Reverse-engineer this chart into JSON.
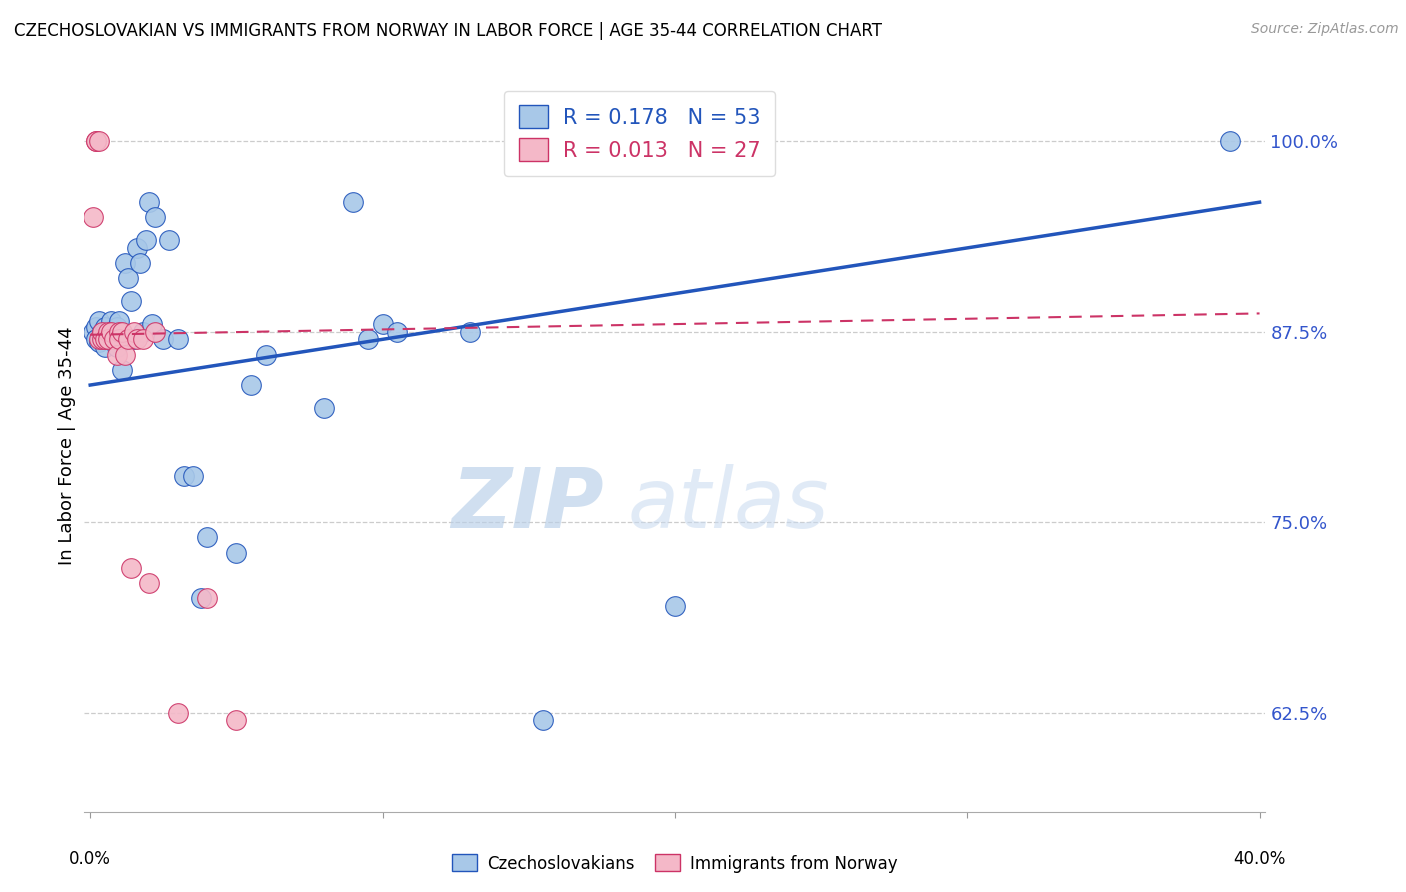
{
  "title": "CZECHOSLOVAKIAN VS IMMIGRANTS FROM NORWAY IN LABOR FORCE | AGE 35-44 CORRELATION CHART",
  "source": "Source: ZipAtlas.com",
  "ylabel": "In Labor Force | Age 35-44",
  "ytick_values": [
    1.0,
    0.875,
    0.75,
    0.625
  ],
  "ytick_labels": [
    "100.0%",
    "87.5%",
    "75.0%",
    "62.5%"
  ],
  "ymin": 0.56,
  "ymax": 1.04,
  "xmin": -0.002,
  "xmax": 0.402,
  "blue_R": 0.178,
  "blue_N": 53,
  "pink_R": 0.013,
  "pink_N": 27,
  "legend_label_blue": "Czechoslovakians",
  "legend_label_pink": "Immigrants from Norway",
  "blue_color": "#a8c8e8",
  "pink_color": "#f4b8c8",
  "trend_blue_color": "#2255bb",
  "trend_pink_color": "#cc3366",
  "watermark_zip": "ZIP",
  "watermark_atlas": "atlas",
  "blue_scatter_x": [
    0.001,
    0.002,
    0.002,
    0.003,
    0.003,
    0.004,
    0.004,
    0.005,
    0.005,
    0.005,
    0.006,
    0.006,
    0.007,
    0.007,
    0.008,
    0.008,
    0.009,
    0.009,
    0.009,
    0.01,
    0.01,
    0.01,
    0.011,
    0.012,
    0.013,
    0.014,
    0.015,
    0.016,
    0.017,
    0.018,
    0.019,
    0.02,
    0.021,
    0.022,
    0.025,
    0.027,
    0.03,
    0.032,
    0.035,
    0.038,
    0.04,
    0.05,
    0.055,
    0.06,
    0.08,
    0.09,
    0.095,
    0.1,
    0.105,
    0.13,
    0.155,
    0.2,
    0.39
  ],
  "blue_scatter_y": [
    0.875,
    0.878,
    0.87,
    0.882,
    0.868,
    0.875,
    0.87,
    0.878,
    0.865,
    0.875,
    0.87,
    0.875,
    0.87,
    0.882,
    0.87,
    0.875,
    0.87,
    0.878,
    0.865,
    0.87,
    0.875,
    0.882,
    0.85,
    0.92,
    0.91,
    0.895,
    0.87,
    0.93,
    0.92,
    0.875,
    0.935,
    0.96,
    0.88,
    0.95,
    0.87,
    0.935,
    0.87,
    0.78,
    0.78,
    0.7,
    0.74,
    0.73,
    0.84,
    0.86,
    0.825,
    0.96,
    0.87,
    0.88,
    0.875,
    0.875,
    0.62,
    0.695,
    1.0
  ],
  "pink_scatter_x": [
    0.001,
    0.002,
    0.002,
    0.003,
    0.003,
    0.004,
    0.004,
    0.005,
    0.006,
    0.006,
    0.007,
    0.008,
    0.009,
    0.01,
    0.01,
    0.011,
    0.012,
    0.013,
    0.014,
    0.015,
    0.016,
    0.018,
    0.02,
    0.022,
    0.03,
    0.04,
    0.05
  ],
  "pink_scatter_y": [
    0.95,
    1.0,
    1.0,
    1.0,
    0.87,
    0.87,
    0.875,
    0.87,
    0.875,
    0.87,
    0.875,
    0.87,
    0.86,
    0.875,
    0.87,
    0.875,
    0.86,
    0.87,
    0.72,
    0.875,
    0.87,
    0.87,
    0.71,
    0.875,
    0.625,
    0.7,
    0.62
  ],
  "blue_trend_x0": 0.0,
  "blue_trend_x1": 0.4,
  "blue_trend_y0": 0.84,
  "blue_trend_y1": 0.96,
  "pink_trend_x0": 0.0,
  "pink_trend_x1": 0.4,
  "pink_trend_y0": 0.873,
  "pink_trend_y1": 0.887
}
